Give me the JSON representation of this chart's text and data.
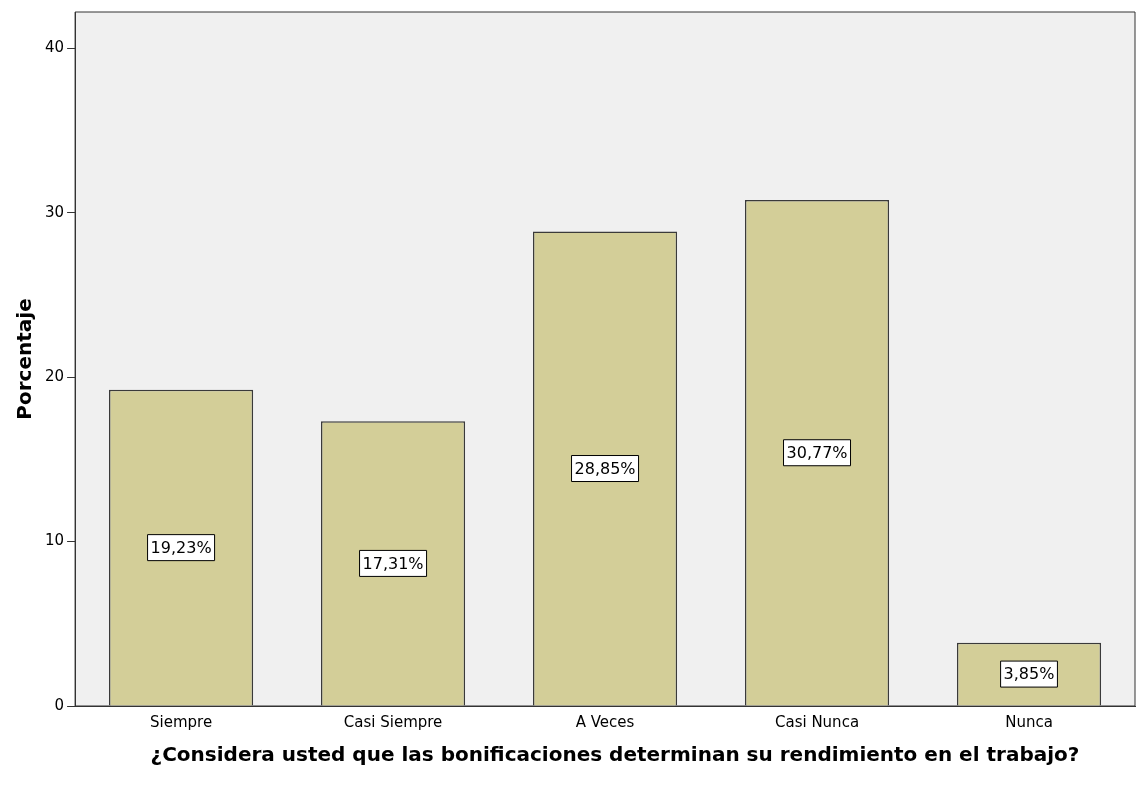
{
  "chart_data": {
    "type": "bar",
    "xlabel": "¿Considera usted que las bonificaciones determinan su rendimiento en el trabajo?",
    "ylabel": "Porcentaje",
    "categories": [
      "Siempre",
      "Casi Siempre",
      "A Veces",
      "Casi Nunca",
      "Nunca"
    ],
    "values": [
      19.23,
      17.31,
      28.85,
      30.77,
      3.85
    ],
    "value_labels": [
      "19,23%",
      "17,31%",
      "28,85%",
      "30,77%",
      "3,85%"
    ],
    "color": "#d3ce98",
    "ylim": [
      0,
      42.2
    ],
    "yticks": [
      0,
      10,
      20,
      30,
      40
    ],
    "grid": false,
    "legend": false
  }
}
